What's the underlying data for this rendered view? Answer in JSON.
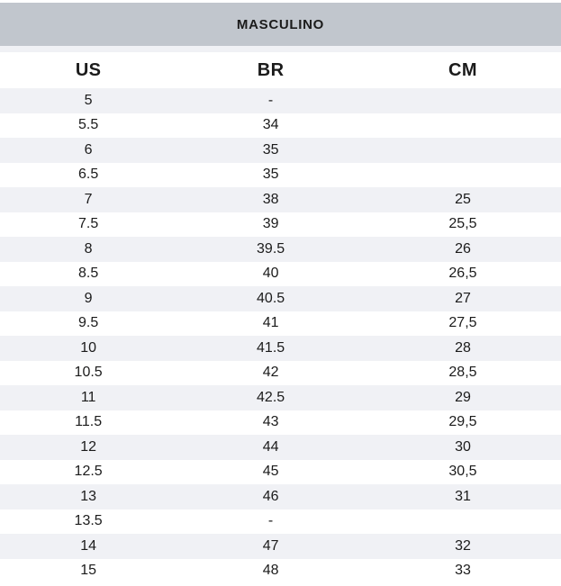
{
  "header": {
    "title": "MASCULINO"
  },
  "colors": {
    "title_band_bg": "#c1c6cd",
    "row_alt_bg": "#f0f1f5",
    "row_bg": "#ffffff",
    "text": "#1b1b1b"
  },
  "chart_data": {
    "type": "table",
    "title": "MASCULINO",
    "columns": [
      "US",
      "BR",
      "CM"
    ],
    "layout": {
      "zebra_striping": true,
      "first_row_shaded": true,
      "decimal_separator_cm": "comma"
    },
    "rows": [
      [
        "5",
        "-",
        ""
      ],
      [
        "5.5",
        "34",
        ""
      ],
      [
        "6",
        "35",
        ""
      ],
      [
        "6.5",
        "35",
        ""
      ],
      [
        "7",
        "38",
        "25"
      ],
      [
        "7.5",
        "39",
        "25,5"
      ],
      [
        "8",
        "39.5",
        "26"
      ],
      [
        "8.5",
        "40",
        "26,5"
      ],
      [
        "9",
        "40.5",
        "27"
      ],
      [
        "9.5",
        "41",
        "27,5"
      ],
      [
        "10",
        "41.5",
        "28"
      ],
      [
        "10.5",
        "42",
        "28,5"
      ],
      [
        "11",
        "42.5",
        "29"
      ],
      [
        "11.5",
        "43",
        "29,5"
      ],
      [
        "12",
        "44",
        "30"
      ],
      [
        "12.5",
        "45",
        "30,5"
      ],
      [
        "13",
        "46",
        "31"
      ],
      [
        "13.5",
        "-",
        ""
      ],
      [
        "14",
        "47",
        "32"
      ],
      [
        "15",
        "48",
        "33"
      ]
    ]
  }
}
